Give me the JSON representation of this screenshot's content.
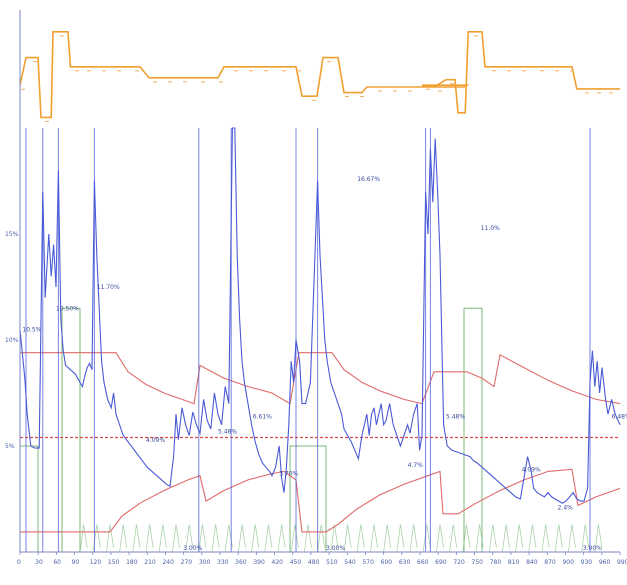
{
  "chart_data": {
    "type": "line",
    "title": "",
    "xlabel": "",
    "ylabel": "",
    "grid": false,
    "colors": {
      "axis": "#7c86c6",
      "price": "#4a5ad6",
      "upper_band": "#e06a6a",
      "lower_band": "#e06a6a",
      "threshold": "#d94a4a",
      "volume": "#7ab878",
      "top_series": "#f0a030",
      "top_markers": "#f0b060"
    },
    "x_ticks": [
      "0",
      "30",
      "60",
      "90",
      "120",
      "150",
      "180",
      "210",
      "240",
      "270",
      "300",
      "330",
      "360",
      "390",
      "420",
      "450",
      "480",
      "510",
      "540",
      "570",
      "600",
      "630",
      "660",
      "690",
      "720",
      "750",
      "780",
      "810",
      "840",
      "870",
      "900",
      "930",
      "960",
      "990"
    ],
    "x_range": [
      0,
      1000
    ],
    "y_ticks": [
      {
        "label": "15%",
        "value": 15
      },
      {
        "label": "10%",
        "value": 10
      },
      {
        "label": "5%",
        "value": 5
      }
    ],
    "y_range": [
      0,
      20
    ],
    "threshold_value": 5.4,
    "top_series": {
      "name": "",
      "y_range": [
        0,
        10
      ],
      "steps": [
        [
          0,
          4
        ],
        [
          10,
          7
        ],
        [
          30,
          7
        ],
        [
          35,
          0.5
        ],
        [
          52,
          0.5
        ],
        [
          55,
          9.8
        ],
        [
          80,
          9.8
        ],
        [
          84,
          6
        ],
        [
          200,
          6
        ],
        [
          215,
          4.8
        ],
        [
          330,
          4.8
        ],
        [
          340,
          6
        ],
        [
          460,
          6
        ],
        [
          470,
          2.8
        ],
        [
          495,
          2.8
        ],
        [
          505,
          7
        ],
        [
          530,
          7
        ],
        [
          540,
          3.2
        ],
        [
          570,
          3.2
        ],
        [
          578,
          3.8
        ],
        [
          740,
          3.8
        ],
        [
          745,
          4
        ],
        [
          670,
          4
        ],
        [
          690,
          3.8
        ],
        [
          710,
          4.6
        ],
        [
          725,
          4.6
        ],
        [
          730,
          1
        ],
        [
          742,
          1
        ],
        [
          747,
          9.8
        ],
        [
          770,
          9.8
        ],
        [
          775,
          6
        ],
        [
          920,
          6
        ],
        [
          928,
          3.6
        ],
        [
          1000,
          3.6
        ]
      ],
      "markers_x": [
        5,
        25,
        45,
        70,
        95,
        115,
        140,
        165,
        195,
        225,
        250,
        275,
        305,
        335,
        360,
        385,
        410,
        440,
        465,
        490,
        515,
        545,
        570,
        600,
        625,
        650,
        680,
        700,
        720,
        760,
        790,
        815,
        840,
        870,
        895,
        920,
        945,
        965,
        985
      ]
    },
    "series": [
      {
        "name": "",
        "points": [
          [
            0,
            10.5
          ],
          [
            8,
            8.2
          ],
          [
            12,
            6.5
          ],
          [
            18,
            5
          ],
          [
            25,
            4.9
          ],
          [
            32,
            4.9
          ],
          [
            38,
            17
          ],
          [
            42,
            12
          ],
          [
            48,
            15
          ],
          [
            52,
            13
          ],
          [
            56,
            14.5
          ],
          [
            60,
            12.5
          ],
          [
            64,
            18
          ],
          [
            68,
            11
          ],
          [
            72,
            9.5
          ],
          [
            76,
            8.8
          ],
          [
            80,
            8.7
          ],
          [
            84,
            8.6
          ],
          [
            88,
            8.5
          ],
          [
            92,
            8.4
          ],
          [
            96,
            8.2
          ],
          [
            100,
            8
          ],
          [
            104,
            7.8
          ],
          [
            108,
            8.3
          ],
          [
            112,
            8.7
          ],
          [
            116,
            8.9
          ],
          [
            120,
            8.6
          ],
          [
            124,
            17.5
          ],
          [
            128,
            14
          ],
          [
            132,
            11.5
          ],
          [
            136,
            9
          ],
          [
            140,
            8
          ],
          [
            146,
            7.2
          ],
          [
            152,
            6.8
          ],
          [
            156,
            7.5
          ],
          [
            160,
            6.5
          ],
          [
            166,
            6
          ],
          [
            172,
            5.5
          ],
          [
            180,
            5.2
          ],
          [
            188,
            4.9
          ],
          [
            196,
            4.6
          ],
          [
            204,
            4.3
          ],
          [
            212,
            4
          ],
          [
            220,
            3.8
          ],
          [
            228,
            3.6
          ],
          [
            236,
            3.4
          ],
          [
            244,
            3.2
          ],
          [
            250,
            3.1
          ],
          [
            256,
            4.5
          ],
          [
            260,
            6.5
          ],
          [
            264,
            5.3
          ],
          [
            270,
            6.8
          ],
          [
            276,
            6
          ],
          [
            282,
            5.5
          ],
          [
            288,
            6.6
          ],
          [
            294,
            6
          ],
          [
            300,
            5.6
          ],
          [
            306,
            7.2
          ],
          [
            312,
            6.2
          ],
          [
            318,
            5.8
          ],
          [
            324,
            7.5
          ],
          [
            330,
            6.5
          ],
          [
            336,
            6
          ],
          [
            342,
            7.8
          ],
          [
            348,
            7
          ],
          [
            354,
            20
          ],
          [
            358,
            20
          ],
          [
            362,
            14
          ],
          [
            366,
            11
          ],
          [
            370,
            9
          ],
          [
            374,
            8
          ],
          [
            380,
            7
          ],
          [
            386,
            6
          ],
          [
            392,
            5.2
          ],
          [
            398,
            4.6
          ],
          [
            404,
            4.2
          ],
          [
            410,
            4
          ],
          [
            416,
            3.8
          ],
          [
            420,
            3.6
          ],
          [
            426,
            4
          ],
          [
            432,
            5
          ],
          [
            436,
            3.5
          ],
          [
            440,
            2.8
          ],
          [
            444,
            4
          ],
          [
            448,
            6
          ],
          [
            452,
            9
          ],
          [
            456,
            8
          ],
          [
            460,
            10
          ],
          [
            466,
            9
          ],
          [
            470,
            7
          ],
          [
            476,
            7
          ],
          [
            484,
            8
          ],
          [
            496,
            17.5
          ],
          [
            500,
            14
          ],
          [
            504,
            12
          ],
          [
            508,
            10
          ],
          [
            512,
            9
          ],
          [
            518,
            8
          ],
          [
            524,
            7.5
          ],
          [
            530,
            7
          ],
          [
            536,
            6.5
          ],
          [
            540,
            5.8
          ],
          [
            546,
            5.5
          ],
          [
            552,
            5.2
          ],
          [
            558,
            4.8
          ],
          [
            564,
            4.4
          ],
          [
            570,
            5.5
          ],
          [
            574,
            6
          ],
          [
            578,
            6.5
          ],
          [
            582,
            5.5
          ],
          [
            586,
            6.5
          ],
          [
            590,
            6.8
          ],
          [
            594,
            6
          ],
          [
            598,
            6.5
          ],
          [
            602,
            7
          ],
          [
            606,
            6
          ],
          [
            610,
            6.2
          ],
          [
            616,
            7
          ],
          [
            622,
            6
          ],
          [
            628,
            5.5
          ],
          [
            634,
            5
          ],
          [
            640,
            5.5
          ],
          [
            646,
            6
          ],
          [
            650,
            5.6
          ],
          [
            656,
            6.5
          ],
          [
            662,
            7
          ],
          [
            666,
            4.8
          ],
          [
            670,
            5.5
          ],
          [
            676,
            17
          ],
          [
            680,
            15
          ],
          [
            684,
            19
          ],
          [
            688,
            16.5
          ],
          [
            692,
            19.5
          ],
          [
            696,
            17
          ],
          [
            700,
            14
          ],
          [
            706,
            6
          ],
          [
            712,
            5
          ],
          [
            720,
            4.8
          ],
          [
            730,
            4.7
          ],
          [
            740,
            4.6
          ],
          [
            750,
            4.5
          ],
          [
            756,
            4.3
          ],
          [
            762,
            4.2
          ],
          [
            770,
            4
          ],
          [
            778,
            3.8
          ],
          [
            786,
            3.6
          ],
          [
            794,
            3.4
          ],
          [
            802,
            3.2
          ],
          [
            810,
            3.0
          ],
          [
            818,
            2.8
          ],
          [
            826,
            2.6
          ],
          [
            834,
            2.5
          ],
          [
            840,
            3.5
          ],
          [
            846,
            4.5
          ],
          [
            852,
            3.8
          ],
          [
            856,
            3
          ],
          [
            862,
            2.8
          ],
          [
            868,
            2.7
          ],
          [
            874,
            2.6
          ],
          [
            880,
            2.8
          ],
          [
            886,
            2.6
          ],
          [
            892,
            2.5
          ],
          [
            898,
            2.4
          ],
          [
            904,
            2.3
          ],
          [
            910,
            2.4
          ],
          [
            916,
            2.6
          ],
          [
            922,
            2.8
          ],
          [
            928,
            2.5
          ],
          [
            934,
            2.4
          ],
          [
            940,
            2.4
          ],
          [
            946,
            3
          ],
          [
            950,
            8
          ],
          [
            954,
            9.5
          ],
          [
            958,
            7.8
          ],
          [
            962,
            9
          ],
          [
            966,
            7.5
          ],
          [
            970,
            8.7
          ],
          [
            976,
            7.2
          ],
          [
            980,
            6.5
          ],
          [
            986,
            7.2
          ],
          [
            992,
            6.5
          ],
          [
            1000,
            6
          ]
        ]
      }
    ],
    "upper_band": [
      [
        0,
        9.4
      ],
      [
        160,
        9.4
      ],
      [
        180,
        8.5
      ],
      [
        210,
        7.9
      ],
      [
        240,
        7.5
      ],
      [
        270,
        7.2
      ],
      [
        290,
        7.0
      ],
      [
        300,
        8.8
      ],
      [
        340,
        8.2
      ],
      [
        380,
        7.8
      ],
      [
        420,
        7.5
      ],
      [
        450,
        7.0
      ],
      [
        465,
        9.4
      ],
      [
        520,
        9.4
      ],
      [
        540,
        8.6
      ],
      [
        570,
        8.0
      ],
      [
        600,
        7.6
      ],
      [
        640,
        7.2
      ],
      [
        670,
        7.0
      ],
      [
        690,
        8.5
      ],
      [
        745,
        8.5
      ],
      [
        770,
        8.2
      ],
      [
        790,
        7.8
      ],
      [
        800,
        9.3
      ],
      [
        840,
        8.7
      ],
      [
        880,
        8.1
      ],
      [
        920,
        7.6
      ],
      [
        960,
        7.2
      ],
      [
        1000,
        7.0
      ]
    ],
    "lower_band": [
      [
        0,
        0.95
      ],
      [
        150,
        0.95
      ],
      [
        170,
        1.7
      ],
      [
        200,
        2.3
      ],
      [
        240,
        2.9
      ],
      [
        280,
        3.4
      ],
      [
        300,
        3.6
      ],
      [
        310,
        2.4
      ],
      [
        340,
        2.9
      ],
      [
        380,
        3.4
      ],
      [
        420,
        3.7
      ],
      [
        440,
        3.8
      ],
      [
        460,
        3.4
      ],
      [
        470,
        0.95
      ],
      [
        510,
        0.95
      ],
      [
        530,
        1.3
      ],
      [
        560,
        2.0
      ],
      [
        600,
        2.7
      ],
      [
        640,
        3.2
      ],
      [
        680,
        3.6
      ],
      [
        700,
        3.8
      ],
      [
        705,
        1.8
      ],
      [
        730,
        1.8
      ],
      [
        760,
        2.3
      ],
      [
        800,
        2.9
      ],
      [
        840,
        3.4
      ],
      [
        880,
        3.8
      ],
      [
        920,
        3.9
      ],
      [
        930,
        2.2
      ],
      [
        960,
        2.6
      ],
      [
        1000,
        3.0
      ]
    ],
    "volume_bars": [
      [
        0,
        5
      ],
      [
        30,
        5
      ],
      [
        30,
        0
      ],
      [
        70,
        0
      ],
      [
        70,
        11.5
      ],
      [
        100,
        11.5
      ],
      [
        100,
        0
      ],
      [
        450,
        0
      ],
      [
        450,
        5
      ],
      [
        510,
        5
      ],
      [
        510,
        0
      ],
      [
        740,
        0
      ],
      [
        740,
        11.5
      ],
      [
        770,
        11.5
      ],
      [
        770,
        0
      ],
      [
        1000,
        0
      ]
    ],
    "vertical_lines_x": [
      10,
      38,
      64,
      124,
      298,
      352,
      460,
      496,
      676,
      684,
      950
    ],
    "data_labels": [
      {
        "text": "10.5%",
        "x": 4,
        "y": 10.4
      },
      {
        "text": "10.50%",
        "x": 60,
        "y": 11.4
      },
      {
        "text": "11.70%",
        "x": 128,
        "y": 12.4
      },
      {
        "text": "4.09%",
        "x": 210,
        "y": 5.2
      },
      {
        "text": "5.48%",
        "x": 330,
        "y": 5.6
      },
      {
        "text": "6.61%",
        "x": 388,
        "y": 6.3
      },
      {
        "text": "3.70%",
        "x": 432,
        "y": 3.6
      },
      {
        "text": "16.67%",
        "x": 562,
        "y": 17.5
      },
      {
        "text": "4.7%",
        "x": 646,
        "y": 4.0
      },
      {
        "text": "5.48%",
        "x": 710,
        "y": 6.3
      },
      {
        "text": "11.0%",
        "x": 768,
        "y": 15.2
      },
      {
        "text": "4.09%",
        "x": 836,
        "y": 3.8
      },
      {
        "text": "2.4%",
        "x": 896,
        "y": 2.0
      },
      {
        "text": "6.48%",
        "x": 986,
        "y": 6.3
      }
    ],
    "bottom_labels": [
      {
        "text": "3.00%",
        "x": 272
      },
      {
        "text": "3.00%",
        "x": 510
      },
      {
        "text": "3.00%",
        "x": 938
      }
    ]
  }
}
